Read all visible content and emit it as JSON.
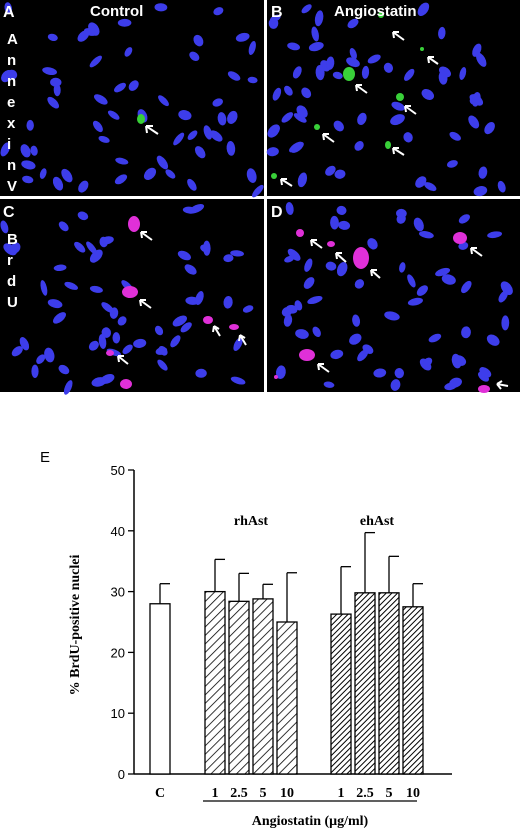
{
  "panels": [
    {
      "letter": "A",
      "title": "Control",
      "side_label": "AnnexinV"
    },
    {
      "letter": "B",
      "title": "Angiostatin",
      "side_label": ""
    },
    {
      "letter": "C",
      "title": "",
      "side_label": "BrdU"
    },
    {
      "letter": "D",
      "title": "",
      "side_label": ""
    }
  ],
  "colors": {
    "background": "#000000",
    "nucleus": "#3d3dea",
    "annexin": "#39d039",
    "brdu": "#e030d8",
    "arrow": "#ffffff",
    "rhast_bar": "#c8c8c8",
    "ehast_bar": "#444444"
  },
  "chart_data": {
    "type": "bar",
    "panel_letter": "E",
    "ylabel": "% BrdU-positive nuclei",
    "xlabel": "Angiostatin (μg/ml)",
    "ylim": [
      0,
      50
    ],
    "yticks": [
      0,
      10,
      20,
      30,
      40,
      50
    ],
    "groups": [
      {
        "name": "",
        "bars": [
          {
            "label": "C",
            "value": 28,
            "error": 3.3,
            "pattern": "open"
          }
        ]
      },
      {
        "name": "rhAst",
        "bars": [
          {
            "label": "1",
            "value": 30,
            "error": 5.3,
            "pattern": "sparse"
          },
          {
            "label": "2.5",
            "value": 28.4,
            "error": 4.6,
            "pattern": "sparse"
          },
          {
            "label": "5",
            "value": 28.8,
            "error": 2.4,
            "pattern": "sparse"
          },
          {
            "label": "10",
            "value": 25,
            "error": 8.1,
            "pattern": "sparse"
          }
        ]
      },
      {
        "name": "ehAst",
        "bars": [
          {
            "label": "1",
            "value": 26.3,
            "error": 7.8,
            "pattern": "dense"
          },
          {
            "label": "2.5",
            "value": 29.8,
            "error": 9.9,
            "pattern": "dense"
          },
          {
            "label": "5",
            "value": 29.8,
            "error": 6.0,
            "pattern": "dense"
          },
          {
            "label": "10",
            "value": 27.5,
            "error": 3.8,
            "pattern": "dense"
          }
        ]
      }
    ]
  }
}
